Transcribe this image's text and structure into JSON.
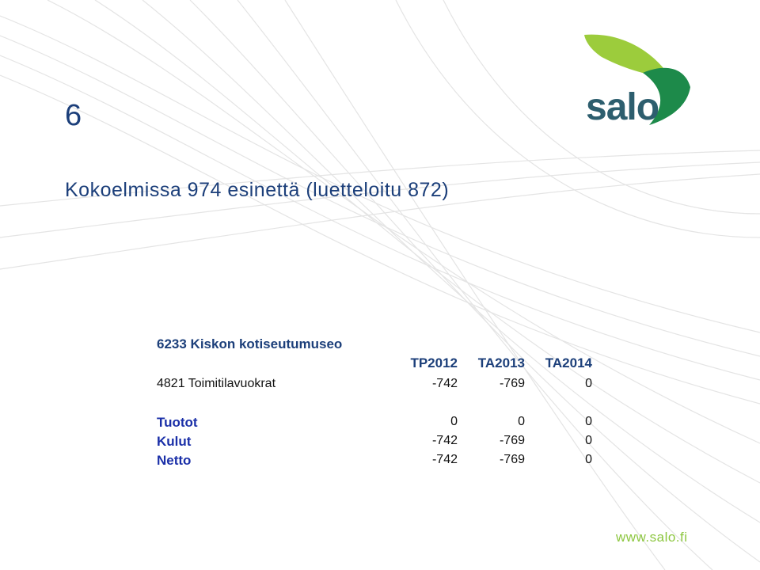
{
  "slide": {
    "number": "6",
    "title": "Kokoelmissa 974 esinettä (luetteloitu 872)",
    "logo": "salo",
    "footer": "www.salo.fi"
  },
  "table": {
    "heading": "6233 Kiskon kotiseutumuseo",
    "columns": [
      "TP2012",
      "TA2013",
      "TA2014"
    ],
    "rows": [
      [
        "4821 Toimitilavuokrat",
        -742,
        -769,
        0
      ]
    ],
    "summary": [
      [
        "Tuotot",
        0,
        0,
        0
      ],
      [
        "Kulut",
        -742,
        -769,
        0
      ],
      [
        "Netto",
        -742,
        -769,
        0
      ]
    ]
  }
}
